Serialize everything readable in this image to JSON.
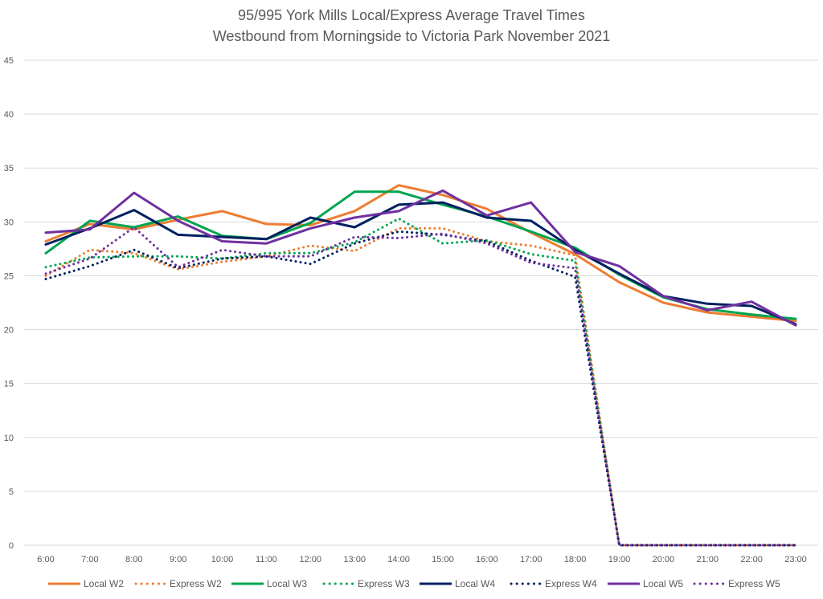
{
  "chart_data": {
    "type": "line",
    "title": "95/995 York Mills Local/Express Average Travel Times",
    "subtitle": "Westbound from Morningside to Victoria Park November 2021",
    "xlabel": "",
    "ylabel": "",
    "ylim": [
      0,
      45
    ],
    "yticks": [
      0,
      5,
      10,
      15,
      20,
      25,
      30,
      35,
      40,
      45
    ],
    "grid": true,
    "legend_position": "bottom",
    "categories": [
      "6:00",
      "7:00",
      "8:00",
      "9:00",
      "10:00",
      "11:00",
      "12:00",
      "13:00",
      "14:00",
      "15:00",
      "16:00",
      "17:00",
      "18:00",
      "19:00",
      "20:00",
      "21:00",
      "22:00",
      "23:00"
    ],
    "series": [
      {
        "name": "Local W2",
        "color": "#ED7D31",
        "style": "solid",
        "values": [
          28.2,
          29.8,
          29.3,
          30.2,
          31.0,
          29.8,
          29.7,
          31.0,
          33.4,
          32.5,
          31.2,
          29.0,
          27.0,
          24.4,
          22.5,
          21.6,
          21.2,
          20.8
        ]
      },
      {
        "name": "Express W2",
        "color": "#ED7D31",
        "style": "dotted",
        "values": [
          25.0,
          27.4,
          27.1,
          25.6,
          26.3,
          26.8,
          27.8,
          27.3,
          29.4,
          29.4,
          28.2,
          27.8,
          26.9,
          0,
          0,
          0,
          0,
          0
        ]
      },
      {
        "name": "Local W3",
        "color": "#00A550",
        "style": "solid",
        "values": [
          27.1,
          30.1,
          29.5,
          30.5,
          28.7,
          28.4,
          29.9,
          32.8,
          32.8,
          31.6,
          30.5,
          29.1,
          27.6,
          25.1,
          23.0,
          21.9,
          21.4,
          21.0
        ]
      },
      {
        "name": "Express W3",
        "color": "#00A550",
        "style": "dotted",
        "values": [
          25.8,
          26.7,
          26.8,
          26.8,
          26.6,
          27.1,
          27.1,
          28.1,
          30.3,
          28.0,
          28.3,
          27.0,
          26.4,
          0,
          0,
          0,
          0,
          0
        ]
      },
      {
        "name": "Local W4",
        "color": "#002060",
        "style": "solid",
        "values": [
          27.9,
          29.4,
          31.1,
          28.8,
          28.6,
          28.4,
          30.4,
          29.5,
          31.6,
          31.8,
          30.4,
          30.1,
          27.4,
          25.2,
          23.1,
          22.4,
          22.2,
          20.5
        ]
      },
      {
        "name": "Express W4",
        "color": "#002060",
        "style": "dotted",
        "values": [
          24.7,
          25.9,
          27.4,
          25.7,
          26.6,
          26.8,
          26.1,
          28.0,
          29.1,
          28.8,
          28.2,
          26.4,
          24.9,
          0,
          0,
          0,
          0,
          0
        ]
      },
      {
        "name": "Local W5",
        "color": "#7030A0",
        "style": "solid",
        "values": [
          29.0,
          29.3,
          32.7,
          30.1,
          28.2,
          28.0,
          29.4,
          30.4,
          31.0,
          32.9,
          30.6,
          31.8,
          27.2,
          25.9,
          23.1,
          21.8,
          22.6,
          20.4
        ]
      },
      {
        "name": "Express W5",
        "color": "#7030A0",
        "style": "dotted",
        "values": [
          25.2,
          26.6,
          29.5,
          25.8,
          27.4,
          26.8,
          26.8,
          28.6,
          28.5,
          28.9,
          28.0,
          26.2,
          25.7,
          0,
          0,
          0,
          0,
          0
        ]
      }
    ]
  }
}
